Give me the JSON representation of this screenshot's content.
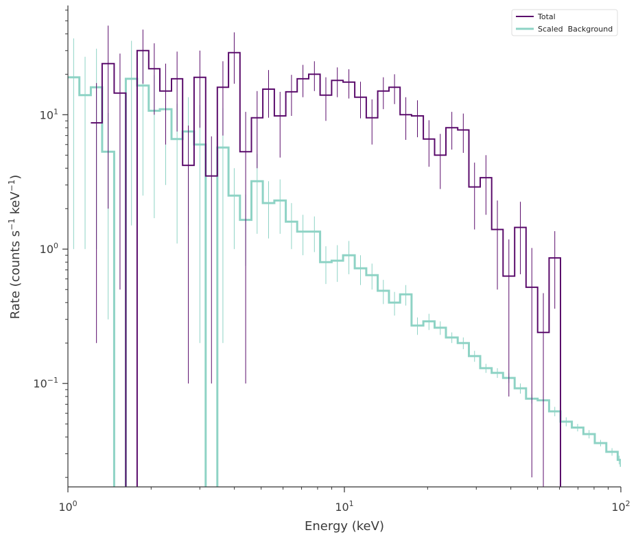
{
  "colors": {
    "total": "#5a0b6b",
    "background": "#8ed3c5",
    "axis": "#333333",
    "text": "#3a3a3a"
  },
  "chart_data": {
    "type": "line",
    "subtype": "step-histogram-with-errorbars",
    "xscale": "log",
    "yscale": "log",
    "xlim": [
      1,
      100
    ],
    "ylim": [
      0.017,
      65
    ],
    "xlabel": "Energy (keV)",
    "ylabel_prefix": "Rate (counts s",
    "ylabel_mid": " keV",
    "ylabel_suffix": ")",
    "ylabel_exp": "−1",
    "xticks": [
      {
        "value": 1,
        "base": "10",
        "exp": "0"
      },
      {
        "value": 10,
        "base": "10",
        "exp": "1"
      },
      {
        "value": 100,
        "base": "10",
        "exp": "2"
      }
    ],
    "yticks": [
      {
        "value": 0.1,
        "base": "10",
        "exp": "−1"
      },
      {
        "value": 1,
        "base": "10",
        "exp": "0"
      },
      {
        "value": 10,
        "base": "10",
        "exp": "1"
      }
    ],
    "legend": {
      "position": "top-right",
      "entries": [
        "Total",
        "Scaled  Background"
      ]
    },
    "series": [
      {
        "name": "Total",
        "edges": [
          1.21,
          1.33,
          1.47,
          1.62,
          1.78,
          1.96,
          2.15,
          2.37,
          2.6,
          2.86,
          3.15,
          3.47,
          3.81,
          4.19,
          4.61,
          5.07,
          5.58,
          6.14,
          6.75,
          7.43,
          8.17,
          8.99,
          9.89,
          10.9,
          12.0,
          13.2,
          14.5,
          15.9,
          17.5,
          19.3,
          21.2,
          23.3,
          25.7,
          28.2,
          31.0,
          34.1,
          37.5,
          41.3,
          45.4,
          50.0,
          55.0,
          60.5,
          66.5
        ],
        "values": [
          8.7,
          24,
          14.5,
          0.001,
          30,
          22,
          15,
          18.5,
          4.2,
          19,
          3.5,
          16,
          29,
          5.3,
          9.5,
          15.5,
          9.8,
          14.8,
          18.5,
          20,
          14,
          18,
          17.5,
          13.5,
          9.5,
          15,
          16,
          10,
          9.8,
          6.6,
          5,
          8,
          7.7,
          2.9,
          3.4,
          1.4,
          0.63,
          1.45,
          0.52,
          0.24,
          0.86,
          0.0001
        ],
        "errors": [
          8.5,
          22,
          14,
          0.001,
          13,
          12,
          9,
          11,
          4.1,
          11,
          3.4,
          9,
          12,
          5.2,
          5.5,
          6,
          5,
          5,
          5,
          5,
          5,
          4.5,
          4.3,
          4.1,
          3.5,
          4,
          4,
          3.5,
          3,
          2.5,
          2.2,
          2.5,
          2.5,
          1.5,
          1.6,
          0.9,
          0.55,
          0.8,
          0.5,
          0.23,
          0.5,
          0.0001
        ]
      },
      {
        "name": "Scaled  Background",
        "edges": [
          1.0,
          1.1,
          1.21,
          1.33,
          1.47,
          1.62,
          1.78,
          1.96,
          2.15,
          2.37,
          2.6,
          2.86,
          3.15,
          3.47,
          3.81,
          4.19,
          4.61,
          5.07,
          5.58,
          6.14,
          6.75,
          7.43,
          8.17,
          8.99,
          9.89,
          10.9,
          12.0,
          13.2,
          14.5,
          15.9,
          17.5,
          19.3,
          21.2,
          23.3,
          25.7,
          28.2,
          31.0,
          34.1,
          37.5,
          41.3,
          45.4,
          50.0,
          55.0,
          60.5,
          66.5,
          73.2,
          80.5,
          88.6,
          97.4,
          100
        ],
        "values": [
          19,
          14,
          16,
          5.3,
          0.001,
          18.5,
          16.5,
          10.7,
          11,
          6.6,
          7.5,
          6,
          0.001,
          5.7,
          2.5,
          1.65,
          3.2,
          2.2,
          2.3,
          1.6,
          1.35,
          1.35,
          0.8,
          0.82,
          0.9,
          0.72,
          0.64,
          0.49,
          0.4,
          0.46,
          0.27,
          0.29,
          0.26,
          0.22,
          0.2,
          0.16,
          0.13,
          0.12,
          0.11,
          0.092,
          0.077,
          0.075,
          0.062,
          0.052,
          0.047,
          0.042,
          0.036,
          0.031,
          0.027,
          0.024
        ],
        "errors": [
          18,
          13,
          15,
          5,
          0.001,
          17,
          14,
          9,
          8,
          5.5,
          6,
          5.8,
          0.001,
          5.5,
          1.5,
          0.9,
          1.9,
          1,
          1,
          0.6,
          0.45,
          0.4,
          0.25,
          0.25,
          0.25,
          0.18,
          0.14,
          0.1,
          0.08,
          0.08,
          0.04,
          0.04,
          0.03,
          0.02,
          0.02,
          0.015,
          0.01,
          0.01,
          0.009,
          0.008,
          0.006,
          0.006,
          0.005,
          0.004,
          0.003,
          0.003,
          0.002,
          0.002,
          0.002,
          0.002
        ]
      }
    ]
  }
}
